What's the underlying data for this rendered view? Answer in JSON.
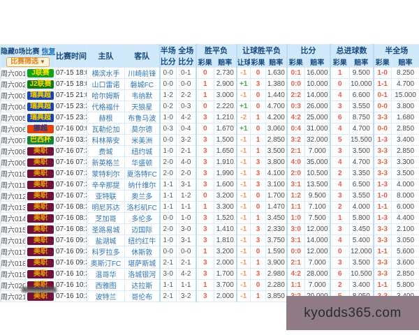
{
  "page": {
    "watermark": "kyodds365.com"
  },
  "toolbar": {
    "hide_label": "隐藏0场比赛",
    "restore_link": "恢复",
    "filter_button": "比赛筛选",
    "filter_arrow": "▼"
  },
  "header": {
    "time": "比赛时间",
    "home": "主队",
    "away": "客队",
    "half1": "半场",
    "half2": "比分",
    "full1": "全场",
    "full2": "比分",
    "wdl": "胜平负",
    "hwdl": "让球胜平负",
    "score": "比分",
    "goals": "总进球数",
    "halffull": "半全场",
    "result": "彩果",
    "odds": "赔率",
    "handicap": "让球"
  },
  "league_colors": {
    "J联赛": {
      "bg": "#0fa317",
      "fg": "#ffe400"
    },
    "J2联赛": {
      "bg": "#0a7a12",
      "fg": "#ffd800"
    },
    "瑞典超": {
      "bg": "#1c41b0",
      "fg": "#ffd800"
    },
    "挪超": {
      "bg": "#e8420b",
      "fg": "#20368c"
    },
    "巴西杯": {
      "bg": "#12843b",
      "fg": "#ffd800"
    },
    "美职": {
      "bg": "#731038",
      "fg": "#f0a000"
    }
  },
  "matches": [
    {
      "id": "周六001",
      "league": "J联赛",
      "time": "07-15 18:00",
      "home": "横滨水手",
      "away": "川崎前锋",
      "half": "0-0",
      "full": "0-1",
      "wdl_r": "0",
      "wdl_o": "2.730",
      "h": "-1",
      "h_r": "0",
      "h_o": "1.630",
      "s_r": "0:1",
      "s_o": "16.000",
      "g_r": "1",
      "g_o": "9.500",
      "hf_r": "1-0",
      "hf_o": "8.250"
    },
    {
      "id": "周六002",
      "league": "J2联赛",
      "time": "07-15 18:00",
      "home": "山口雷诺",
      "away": "磐城FC",
      "half": "0-0",
      "full": "0-0",
      "wdl_r": "1",
      "wdl_o": "2.900",
      "h": "+1",
      "h_r": "3",
      "h_o": "1.380",
      "s_r": "0:0",
      "s_o": "10.000",
      "g_r": "0",
      "g_o": "10.000",
      "hf_r": "1-1",
      "hf_o": "4.700"
    },
    {
      "id": "周六003",
      "league": "瑞典超",
      "time": "07-15 21:00",
      "home": "哈尔姆斯",
      "away": "韦纳默",
      "half": "1-2",
      "full": "2-2",
      "wdl_r": "1",
      "wdl_o": "3.000",
      "h": "-1",
      "h_r": "0",
      "h_o": "1.440",
      "s_r": "2:2",
      "s_o": "14.000",
      "g_r": "4",
      "g_o": "6.600",
      "hf_r": "0-1",
      "hf_o": "15.000"
    },
    {
      "id": "周六004",
      "league": "瑞典超",
      "time": "07-15 23:30",
      "home": "代格福什",
      "away": "天狼星",
      "half": "0-2",
      "full": "0-3",
      "wdl_r": "0",
      "wdl_o": "2.220",
      "h": "+1",
      "h_r": "0",
      "h_o": "4.700",
      "s_r": "0:3",
      "s_o": "26.000",
      "g_r": "3",
      "g_o": "3.550",
      "hf_r": "0-0",
      "hf_o": "3.800"
    },
    {
      "id": "周六005",
      "league": "瑞典超",
      "time": "07-15 23:30",
      "home": "赫根",
      "away": "布鲁马波",
      "half": "1-0",
      "full": "4-2",
      "wdl_r": "3",
      "wdl_o": "1.210",
      "h": "-2",
      "h_r": "1",
      "h_o": "4.200",
      "s_r": "4:2",
      "s_o": "25.000",
      "g_r": "6",
      "g_o": "8.750",
      "hf_r": "3-3",
      "hf_o": "1.680"
    },
    {
      "id": "周六006",
      "league": "挪超",
      "time": "07-16 00:00",
      "home": "瓦勒伦加",
      "away": "莫尔德",
      "half": "0-3",
      "full": "0-4",
      "wdl_r": "0",
      "wdl_o": "1.670",
      "h": "+1",
      "h_r": "0",
      "h_o": "3.060",
      "s_r": "0:4",
      "s_o": "31.000",
      "g_r": "4",
      "g_o": "4.700",
      "hf_r": "0-0",
      "hf_o": "2.850"
    },
    {
      "id": "周六007",
      "league": "巴西杯",
      "time": "07-16 03:30",
      "home": "科林蒂安",
      "away": "米美洲",
      "half": "0-0",
      "full": "3-2",
      "wdl_r": "3",
      "wdl_o": "1.500",
      "h": "-1",
      "h_r": "1",
      "h_o": "2.850",
      "s_r": "3:2",
      "s_o": "32.000",
      "g_r": "5",
      "g_o": "15.500",
      "hf_r": "1-3",
      "hf_o": "3.400"
    },
    {
      "id": "周六008",
      "league": "美职",
      "time": "07-16 07:30",
      "home": "费城",
      "away": "纽约城",
      "half": "1-0",
      "full": "2-1",
      "wdl_r": "3",
      "wdl_o": "1.650",
      "h": "-1",
      "h_r": "1",
      "h_o": "3.500",
      "s_r": "2:1",
      "s_o": "7.000",
      "g_r": "3",
      "g_o": "3.500",
      "hf_r": "3-3",
      "hf_o": "2.850"
    },
    {
      "id": "周六009",
      "league": "美职",
      "time": "07-16 07:30",
      "home": "新英格兰",
      "away": "华盛顿",
      "half": "2-0",
      "full": "4-0",
      "wdl_r": "3",
      "wdl_o": "1.910",
      "h": "-1",
      "h_r": "3",
      "h_o": "3.800",
      "s_r": "4:0",
      "s_o": "35.000",
      "g_r": "4",
      "g_o": "4.700",
      "hf_r": "3-3",
      "hf_o": "3.300"
    },
    {
      "id": "周六010",
      "league": "美职",
      "time": "07-16 07:30",
      "home": "蒙特利尔",
      "away": "夏洛特FC",
      "half": "2-0",
      "full": "2-0",
      "wdl_r": "3",
      "wdl_o": "1.990",
      "h": "-1",
      "h_r": "3",
      "h_o": "4.100",
      "s_r": "2:0",
      "s_o": "10.500",
      "g_r": "2",
      "g_o": "3.350",
      "hf_r": "3-3",
      "hf_o": "3.500"
    },
    {
      "id": "周六011",
      "league": "美职",
      "time": "07-16 07:30",
      "home": "辛辛那提",
      "away": "纳什维尔",
      "half": "1-1",
      "full": "3-1",
      "wdl_r": "3",
      "wdl_o": "1.600",
      "h": "-1",
      "h_r": "3",
      "h_o": "3.100",
      "s_r": "3:1",
      "s_o": "13.500",
      "g_r": "4",
      "g_o": "6.500",
      "hf_r": "1-3",
      "hf_o": "4.000"
    },
    {
      "id": "周六012",
      "league": "美职",
      "time": "07-16 07:30",
      "home": "亚特联",
      "away": "奥兰多",
      "half": "1-1",
      "full": "1-2",
      "wdl_r": "0",
      "wdl_o": "3.200",
      "h": "-1",
      "h_r": "0",
      "h_o": "1.700",
      "s_r": "1:2",
      "s_o": "9.500",
      "g_r": "3",
      "g_o": "3.550",
      "hf_r": "1-0",
      "hf_o": "8.000"
    },
    {
      "id": "周六013",
      "league": "美职",
      "time": "07-16 08:30",
      "home": "明尼苏达",
      "away": "洛杉矶FC",
      "half": "1-1",
      "full": "1-1",
      "wdl_r": "1",
      "wdl_o": "3.300",
      "h": "-1",
      "h_r": "0",
      "h_o": "1.470",
      "s_r": "1:1",
      "s_o": "7.100",
      "g_r": "2",
      "g_o": "4.000",
      "hf_r": "1-1",
      "hf_o": "6.000"
    },
    {
      "id": "周六014",
      "league": "美职",
      "time": "07-16 08:30",
      "home": "芝加哥",
      "away": "多伦多",
      "half": "0-0",
      "full": "1-0",
      "wdl_r": "3",
      "wdl_o": "1.520",
      "h": "-1",
      "h_r": "1",
      "h_o": "3.450",
      "s_r": "1:0",
      "s_o": "7.500",
      "g_r": "1",
      "g_o": "5.800",
      "hf_r": "1-3",
      "hf_o": "4.400"
    },
    {
      "id": "周六015",
      "league": "美职",
      "time": "07-16 08:30",
      "home": "圣路易城",
      "away": "迈国际",
      "half": "2-0",
      "full": "3-0",
      "wdl_r": "3",
      "wdl_o": "1.410",
      "h": "-1",
      "h_r": "3",
      "h_o": "2.330",
      "s_r": "3:0",
      "s_o": "12.000",
      "g_r": "3",
      "g_o": "3.450",
      "hf_r": "3-3",
      "hf_o": "2.100"
    },
    {
      "id": "周六016",
      "league": "美职",
      "time": "07-16 09:30",
      "home": "盐湖城",
      "away": "纽约红牛",
      "half": "1-0",
      "full": "3-1",
      "wdl_r": "3",
      "wdl_o": "1.810",
      "h": "-1",
      "h_r": "3",
      "h_o": "3.750",
      "s_r": "3:1",
      "s_o": "14.000",
      "g_r": "4",
      "g_o": "5.400",
      "hf_r": "3-3",
      "hf_o": "3.050"
    },
    {
      "id": "周六017",
      "league": "美职",
      "time": "07-16 09:30",
      "home": "科罗拉多",
      "away": "休斯敦",
      "half": "0-0",
      "full": "0-0",
      "wdl_r": "1",
      "wdl_o": "3.200",
      "h": "-1",
      "h_r": "0",
      "h_o": "1.590",
      "s_r": "0:0",
      "s_o": "12.000",
      "g_r": "0",
      "g_o": "12.000",
      "hf_r": "1-1",
      "hf_o": "5.600"
    },
    {
      "id": "周六018",
      "league": "美职",
      "time": "07-16 09:30",
      "home": "奥斯汀FC",
      "away": "堪萨斯城",
      "half": "2-1",
      "full": "2-1",
      "wdl_r": "3",
      "wdl_o": "2.000",
      "h": "-1",
      "h_r": "1",
      "h_o": "3.900",
      "s_r": "2:1",
      "s_o": "7.000",
      "g_r": "3",
      "g_o": "3.500",
      "hf_r": "3-3",
      "hf_o": "3.600"
    },
    {
      "id": "周六019",
      "league": "美职",
      "time": "07-16 10:30",
      "home": "温哥华",
      "away": "洛城银河",
      "half": "3-0",
      "full": "4-2",
      "wdl_r": "3",
      "wdl_o": "1.700",
      "h": "-1",
      "h_r": "3",
      "h_o": "2.980",
      "s_r": "4:2",
      "s_o": "28.000",
      "g_r": "6",
      "g_o": "10.500",
      "hf_r": "3-3",
      "hf_o": "2.850"
    },
    {
      "id": "周六020",
      "league": "美职",
      "time": "07-16 10:30",
      "home": "西雅图",
      "away": "达拉斯",
      "half": "1-1",
      "full": "1-1",
      "wdl_r": "1",
      "wdl_o": "3.700",
      "h": "-1",
      "h_r": "0",
      "h_o": "2.280",
      "s_r": "1:1",
      "s_o": "7.000",
      "g_r": "2",
      "g_o": "3.400",
      "hf_r": "1-1",
      "hf_o": "5.800"
    },
    {
      "id": "周六021",
      "league": "美职",
      "time": "07-16 10:30",
      "home": "波特兰",
      "away": "哥伦布",
      "half": "2-1",
      "full": "3-2",
      "wdl_r": "3",
      "wdl_o": "2.000",
      "h": "-1",
      "h_r": "1",
      "h_o": "3.850",
      "s_r": "3:2",
      "s_o": "20.000",
      "g_r": "5",
      "g_o": "8.050",
      "hf_r": "3-3",
      "hf_o": "3.400"
    }
  ]
}
